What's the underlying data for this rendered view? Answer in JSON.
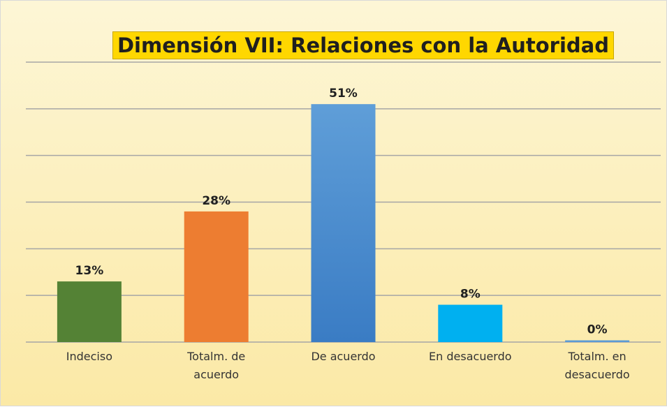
{
  "chart_data": {
    "type": "bar",
    "title": "Dimensión VII: Relaciones con la Autoridad",
    "categories": [
      "Indeciso",
      "Totalm. de acuerdo",
      "De acuerdo",
      "En desacuerdo",
      "Totalm. en desacuerdo"
    ],
    "values": [
      13,
      28,
      51,
      8,
      0
    ],
    "value_labels": [
      "13%",
      "28%",
      "51%",
      "8%",
      "0%"
    ],
    "colors": [
      "#548235",
      "#ed7d31",
      "#5b9bd5",
      "#00b0f0",
      "#5b9bd5"
    ],
    "ylim": [
      0,
      60
    ],
    "yticks": [
      0,
      10,
      20,
      30,
      40,
      50,
      60
    ],
    "grid": true
  }
}
